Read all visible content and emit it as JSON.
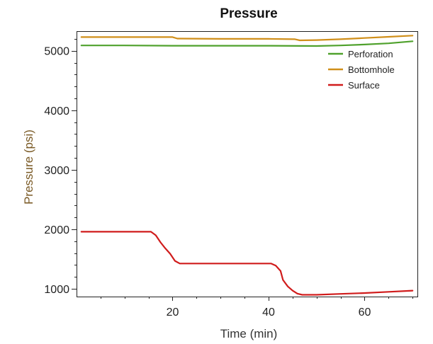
{
  "chart_data": {
    "type": "line",
    "title": "Pressure",
    "xlabel": "Time (min)",
    "ylabel": "Pressure (psi)",
    "xlim": [
      0,
      71
    ],
    "ylim": [
      870,
      5330
    ],
    "xticks": [
      20,
      40,
      60
    ],
    "yticks": [
      1000,
      2000,
      3000,
      4000,
      5000
    ],
    "grid": false,
    "legend_position": "top-right",
    "colors": {
      "axis": "#222222",
      "title": "#111111",
      "xlabel": "#333333",
      "ylabel": "#7a5a25"
    },
    "series": [
      {
        "name": "Perforation",
        "color": "#4fa12c",
        "x": [
          1,
          10,
          20,
          30,
          40,
          50,
          55,
          60,
          65,
          70
        ],
        "y": [
          5090,
          5090,
          5085,
          5085,
          5085,
          5080,
          5090,
          5105,
          5125,
          5160
        ]
      },
      {
        "name": "Bottomhole",
        "color": "#d08f1a",
        "x": [
          1,
          10,
          20,
          21,
          30,
          40,
          45.5,
          46.5,
          50,
          55,
          60,
          65,
          70
        ],
        "y": [
          5230,
          5230,
          5230,
          5205,
          5200,
          5200,
          5195,
          5175,
          5180,
          5195,
          5215,
          5235,
          5255
        ]
      },
      {
        "name": "Surface",
        "color": "#d01c1c",
        "x": [
          1,
          5,
          10,
          15.5,
          16.5,
          17.5,
          18.5,
          19.5,
          20.5,
          21.5,
          25,
          30,
          35,
          40.5,
          41.5,
          42.5,
          43,
          44,
          45,
          46,
          47,
          50,
          55,
          60,
          65,
          70
        ],
        "y": [
          1960,
          1960,
          1960,
          1960,
          1900,
          1780,
          1680,
          1590,
          1470,
          1425,
          1425,
          1425,
          1425,
          1425,
          1390,
          1300,
          1150,
          1040,
          970,
          920,
          900,
          900,
          915,
          930,
          950,
          970
        ]
      }
    ]
  }
}
